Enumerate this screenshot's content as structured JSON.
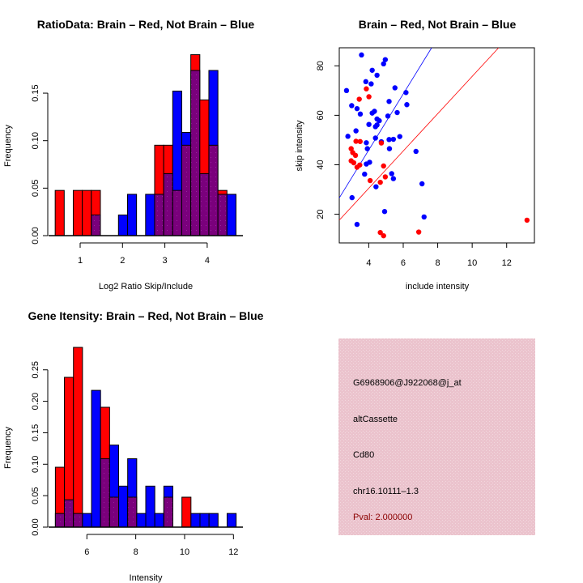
{
  "colors": {
    "brain": "#ff0000",
    "not_brain": "#0000ff",
    "overlap": "#7a007c",
    "info_bg": "#e8c6cf",
    "pval_text": "#8b0000"
  },
  "chart_data": [
    {
      "id": "ratio-hist",
      "type": "bar",
      "title": "RatioData: Brain – Red, Not Brain – Blue",
      "xlabel": "Log2 Ratio Skip/Include",
      "ylabel": "Frequency",
      "xlim": [
        0.41,
        4.68
      ],
      "ylim": [
        0,
        0.19
      ],
      "xticks": [
        1,
        2,
        3,
        4
      ],
      "yticks": [
        0.0,
        0.05,
        0.1,
        0.15
      ],
      "ytick_labels": [
        "0.00",
        "0.05",
        "0.10",
        "0.15"
      ],
      "bin_start": 0.41,
      "bin_width": 0.2135,
      "series": [
        {
          "name": "Brain",
          "color": "red",
          "values": [
            0.0476,
            0,
            0.0476,
            0.0476,
            0.0476,
            0,
            0,
            0,
            0,
            0,
            0,
            0.0952,
            0.0952,
            0.0476,
            0.0952,
            0.1905,
            0.1429,
            0.0952,
            0.0476,
            0
          ]
        },
        {
          "name": "Not Brain",
          "color": "blue",
          "values": [
            0,
            0,
            0,
            0,
            0.0217,
            0,
            0,
            0.0217,
            0.0435,
            0,
            0.0435,
            0.0435,
            0.0652,
            0.1522,
            0.1087,
            0.1739,
            0.0652,
            0.1739,
            0.0435,
            0.0435
          ]
        }
      ]
    },
    {
      "id": "intensity-scatter",
      "type": "scatter",
      "title": "Brain – Red, Not Brain – Blue",
      "xlabel": "include intensity",
      "ylabel": "skip intensity",
      "xlim": [
        2.29,
        13.61
      ],
      "ylim": [
        8.4,
        87.3
      ],
      "xticks": [
        4,
        6,
        8,
        10,
        12
      ],
      "yticks": [
        20,
        40,
        60,
        80
      ],
      "series": [
        {
          "name": "Not Brain",
          "color": "blue",
          "points": [
            [
              3.58,
              84.4
            ],
            [
              4.96,
              82.5
            ],
            [
              4.86,
              80.8
            ],
            [
              4.2,
              78.2
            ],
            [
              4.48,
              76.2
            ],
            [
              3.83,
              73.6
            ],
            [
              4.14,
              72.7
            ],
            [
              2.71,
              70.0
            ],
            [
              5.52,
              71.1
            ],
            [
              6.16,
              69.2
            ],
            [
              3.01,
              63.9
            ],
            [
              5.18,
              65.6
            ],
            [
              6.21,
              64.3
            ],
            [
              3.32,
              62.7
            ],
            [
              3.51,
              60.5
            ],
            [
              4.2,
              60.9
            ],
            [
              4.33,
              61.6
            ],
            [
              5.11,
              59.7
            ],
            [
              5.65,
              61.1
            ],
            [
              4.48,
              58.5
            ],
            [
              4.61,
              57.8
            ],
            [
              4.01,
              56.3
            ],
            [
              4.48,
              56.1
            ],
            [
              4.39,
              55.4
            ],
            [
              3.26,
              53.7
            ],
            [
              2.79,
              51.5
            ],
            [
              4.39,
              50.8
            ],
            [
              5.18,
              50.2
            ],
            [
              5.43,
              50.3
            ],
            [
              5.8,
              51.4
            ],
            [
              3.86,
              48.9
            ],
            [
              4.73,
              49.3
            ],
            [
              3.92,
              46.5
            ],
            [
              5.2,
              46.5
            ],
            [
              6.74,
              45.4
            ],
            [
              3.86,
              40.3
            ],
            [
              4.05,
              41.0
            ],
            [
              3.76,
              36.2
            ],
            [
              5.33,
              36.4
            ],
            [
              5.43,
              34.4
            ],
            [
              7.09,
              32.3
            ],
            [
              4.42,
              31.1
            ],
            [
              3.03,
              26.7
            ],
            [
              4.92,
              21.1
            ],
            [
              7.21,
              18.9
            ],
            [
              3.32,
              15.9
            ]
          ],
          "fit_line": {
            "intercept": 0.65,
            "slope": 11.33
          }
        },
        {
          "name": "Brain",
          "color": "red",
          "points": [
            [
              3.86,
              70.7
            ],
            [
              3.45,
              66.5
            ],
            [
              4.01,
              67.5
            ],
            [
              3.26,
              49.5
            ],
            [
              3.5,
              49.4
            ],
            [
              4.73,
              48.8
            ],
            [
              2.98,
              46.5
            ],
            [
              3.07,
              44.9
            ],
            [
              3.23,
              43.8
            ],
            [
              2.98,
              41.6
            ],
            [
              3.13,
              40.8
            ],
            [
              3.32,
              39.0
            ],
            [
              3.48,
              39.9
            ],
            [
              4.86,
              39.5
            ],
            [
              4.08,
              33.6
            ],
            [
              4.96,
              35.1
            ],
            [
              4.67,
              32.9
            ],
            [
              4.67,
              12.6
            ],
            [
              4.86,
              11.3
            ],
            [
              6.9,
              12.8
            ],
            [
              13.18,
              17.6
            ]
          ],
          "fit_line": {
            "intercept": 0.33,
            "slope": 7.54
          }
        }
      ]
    },
    {
      "id": "gene-hist",
      "type": "bar",
      "title": "Gene Itensity: Brain – Red, Not Brain – Blue",
      "xlabel": "Intensity",
      "ylabel": "Frequency",
      "xlim": [
        4.71,
        12.11
      ],
      "ylim": [
        0,
        0.287
      ],
      "xticks": [
        6,
        8,
        10,
        12
      ],
      "yticks": [
        0.0,
        0.05,
        0.1,
        0.15,
        0.2,
        0.25
      ],
      "ytick_labels": [
        "0.00",
        "0.05",
        "0.10",
        "0.15",
        "0.20",
        "0.25"
      ],
      "bin_start": 4.71,
      "bin_width": 0.37,
      "series": [
        {
          "name": "Brain",
          "color": "red",
          "values": [
            0.0952,
            0.2381,
            0.2857,
            0,
            0,
            0.1905,
            0.0476,
            0,
            0.0476,
            0,
            0,
            0,
            0.0476,
            0,
            0.0476,
            0,
            0,
            0,
            0,
            0
          ]
        },
        {
          "name": "Not Brain",
          "color": "blue",
          "values": [
            0.0217,
            0.0435,
            0.0217,
            0.0217,
            0.2174,
            0.1087,
            0.1304,
            0.0652,
            0.1087,
            0.0217,
            0.0652,
            0.0217,
            0.0652,
            0,
            0,
            0.0217,
            0.0217,
            0.0217,
            0,
            0.0217
          ]
        }
      ]
    }
  ],
  "info_panel": {
    "probe_id": "G6968906@J922068@j_at",
    "event_type": "altCassette",
    "gene": "Cd80",
    "location": "chr16.10111–1.3",
    "pval": "Pval: 2.000000"
  }
}
